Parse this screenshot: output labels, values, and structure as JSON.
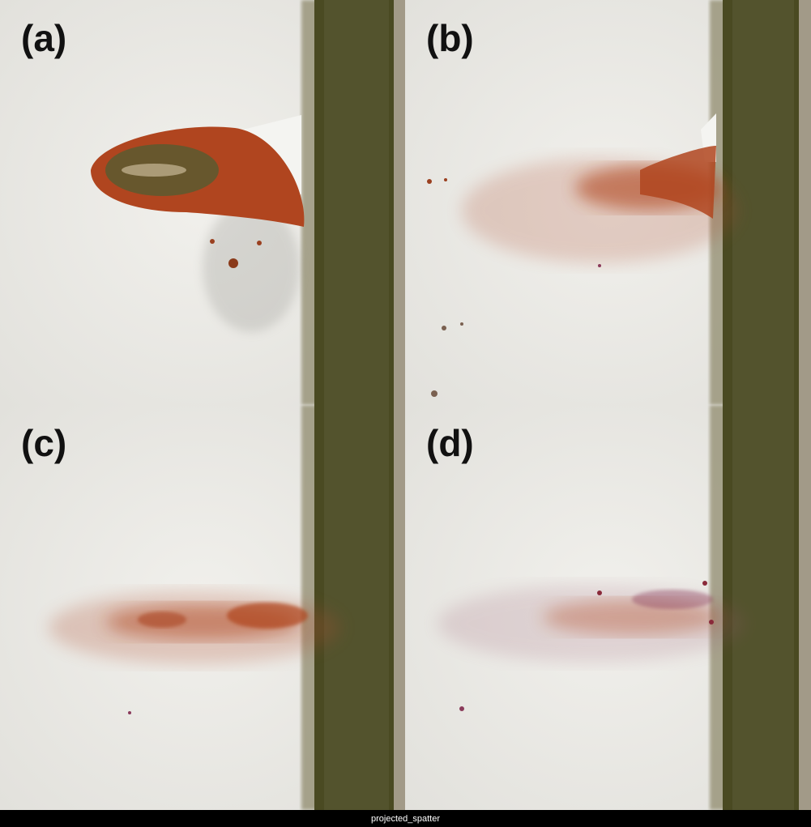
{
  "panels": [
    {
      "label": "(a)"
    },
    {
      "label": "(b)"
    },
    {
      "label": "(c)"
    },
    {
      "label": "(d)"
    }
  ],
  "caption": "projected_spatter",
  "colors": {
    "background": "#e9e8e4",
    "barrier": "#4a4a22",
    "spatter": "#b0451f",
    "caption_bar": "#000000"
  }
}
